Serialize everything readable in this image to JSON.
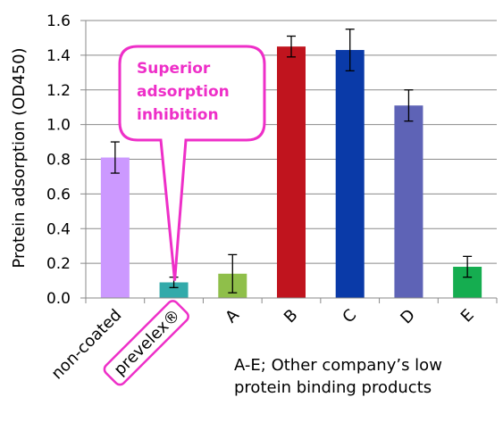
{
  "chart_data": {
    "type": "bar",
    "title": "",
    "xlabel": "",
    "ylabel": "Protein adsorption (OD450)",
    "ylim": [
      0,
      1.6
    ],
    "yticks": [
      "0.0",
      "0.2",
      "0.4",
      "0.6",
      "0.8",
      "1.0",
      "1.2",
      "1.4",
      "1.6"
    ],
    "grid": true,
    "categories": [
      "non-coated",
      "prevelex®",
      "A",
      "B",
      "C",
      "D",
      "E"
    ],
    "values": [
      0.81,
      0.09,
      0.14,
      1.45,
      1.43,
      1.11,
      0.18
    ],
    "errors": [
      0.09,
      0.03,
      0.11,
      0.06,
      0.12,
      0.09,
      0.06
    ],
    "colors": [
      "#cc99ff",
      "#33aaaa",
      "#8fbf4a",
      "#c0141e",
      "#0a3aa8",
      "#5e63b6",
      "#15ad50"
    ],
    "highlight_category": "prevelex®",
    "highlight_color": "#ee2fc8",
    "annotation": {
      "lines": [
        "Superior",
        "adsorption",
        "inhibition"
      ],
      "color": "#ee2fc8"
    },
    "note": {
      "lines": [
        "A-E; Other company’s low",
        "protein binding products"
      ]
    }
  }
}
